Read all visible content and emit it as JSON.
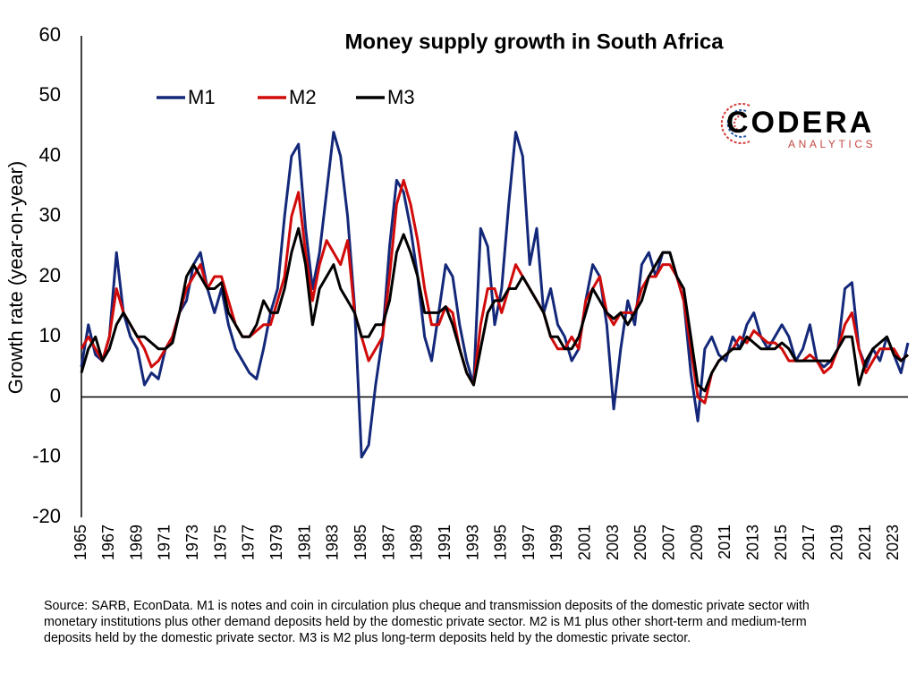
{
  "chart_data": {
    "type": "line",
    "title": "Money supply growth in South Africa",
    "y_label": "Growth rate (year-on-year)",
    "logo": {
      "name": "CODERA",
      "tagline": "ANALYTICS"
    },
    "source_note": [
      "Source: SARB, EconData. M1 is notes and coin in circulation plus cheque and transmission deposits of the domestic private sector with",
      "monetary institutions plus other demand deposits held by the domestic private sector. M2 is M1 plus other short-term and medium-term",
      "deposits held by the domestic private sector. M3 is M2 plus long-term deposits held by the domestic private sector."
    ],
    "xlim": [
      1965,
      2024
    ],
    "xticks": [
      1965,
      1967,
      1969,
      1971,
      1973,
      1975,
      1977,
      1979,
      1981,
      1983,
      1985,
      1987,
      1989,
      1991,
      1993,
      1995,
      1997,
      1999,
      2001,
      2003,
      2005,
      2007,
      2009,
      2011,
      2013,
      2015,
      2017,
      2019,
      2021,
      2023
    ],
    "ylim": [
      -20,
      60
    ],
    "yticks": [
      -20,
      -10,
      0,
      10,
      20,
      30,
      40,
      50,
      60
    ],
    "grid": false,
    "legend": "top-left",
    "x": [
      1965,
      1965.5,
      1966,
      1966.5,
      1967,
      1967.5,
      1968,
      1968.5,
      1969,
      1969.5,
      1970,
      1970.5,
      1971,
      1971.5,
      1972,
      1972.5,
      1973,
      1973.5,
      1974,
      1974.5,
      1975,
      1975.5,
      1976,
      1976.5,
      1977,
      1977.5,
      1978,
      1978.5,
      1979,
      1979.5,
      1980,
      1980.5,
      1981,
      1981.5,
      1982,
      1982.5,
      1983,
      1983.5,
      1984,
      1984.5,
      1985,
      1985.5,
      1986,
      1986.5,
      1987,
      1987.5,
      1988,
      1988.5,
      1989,
      1989.5,
      1990,
      1990.5,
      1991,
      1991.5,
      1992,
      1992.5,
      1993,
      1993.5,
      1994,
      1994.5,
      1995,
      1995.5,
      1996,
      1996.5,
      1997,
      1997.5,
      1998,
      1998.5,
      1999,
      1999.5,
      2000,
      2000.5,
      2001,
      2001.5,
      2002,
      2002.5,
      2003,
      2003.5,
      2004,
      2004.5,
      2005,
      2005.5,
      2006,
      2006.5,
      2007,
      2007.5,
      2008,
      2008.5,
      2009,
      2009.5,
      2010,
      2010.5,
      2011,
      2011.5,
      2012,
      2012.5,
      2013,
      2013.5,
      2014,
      2014.5,
      2015,
      2015.5,
      2016,
      2016.5,
      2017,
      2017.5,
      2018,
      2018.5,
      2019,
      2019.5,
      2020,
      2020.5,
      2021,
      2021.5,
      2022,
      2022.5,
      2023,
      2023.5,
      2024
    ],
    "series": [
      {
        "name": "M1",
        "color": "#14287a",
        "values": [
          5,
          12,
          7,
          6,
          10,
          24,
          14,
          10,
          8,
          2,
          4,
          3,
          8,
          10,
          14,
          16,
          22,
          24,
          18,
          14,
          18,
          12,
          8,
          6,
          4,
          3,
          8,
          14,
          18,
          30,
          40,
          42,
          28,
          18,
          24,
          34,
          44,
          40,
          30,
          15,
          -10,
          -8,
          2,
          10,
          25,
          36,
          34,
          28,
          20,
          10,
          6,
          14,
          22,
          20,
          12,
          6,
          2,
          28,
          25,
          12,
          18,
          32,
          44,
          40,
          22,
          28,
          14,
          18,
          12,
          10,
          6,
          8,
          16,
          22,
          20,
          12,
          -2,
          8,
          16,
          12,
          22,
          24,
          20,
          24,
          24,
          20,
          16,
          4,
          -4,
          8,
          10,
          7,
          6,
          10,
          8,
          12,
          14,
          10,
          8,
          10,
          12,
          10,
          6,
          8,
          12,
          6,
          5,
          6,
          8,
          18,
          19,
          8,
          5,
          8,
          6,
          10,
          7,
          4,
          9
        ]
      },
      {
        "name": "M2",
        "color": "#d10a0a",
        "values": [
          8,
          10,
          8,
          6,
          10,
          18,
          14,
          12,
          10,
          8,
          5,
          6,
          8,
          10,
          14,
          18,
          20,
          22,
          18,
          20,
          20,
          16,
          12,
          10,
          10,
          11,
          12,
          12,
          16,
          20,
          30,
          34,
          24,
          16,
          22,
          26,
          24,
          22,
          26,
          14,
          10,
          6,
          8,
          10,
          20,
          32,
          36,
          32,
          26,
          18,
          12,
          12,
          15,
          14,
          8,
          4,
          2,
          12,
          18,
          18,
          14,
          18,
          22,
          20,
          18,
          16,
          14,
          10,
          8,
          8,
          10,
          8,
          16,
          18,
          20,
          14,
          12,
          14,
          14,
          14,
          18,
          20,
          20,
          22,
          22,
          20,
          16,
          8,
          0,
          -1,
          4,
          6,
          7,
          8,
          10,
          9,
          11,
          10,
          9,
          9,
          8,
          6,
          6,
          6,
          7,
          6,
          4,
          5,
          8,
          12,
          14,
          8,
          4,
          6,
          8,
          8,
          8,
          6,
          7
        ]
      },
      {
        "name": "M3",
        "color": "#000000",
        "values": [
          4,
          8,
          10,
          6,
          8,
          12,
          14,
          12,
          10,
          10,
          9,
          8,
          8,
          9,
          14,
          20,
          22,
          20,
          18,
          18,
          19,
          14,
          12,
          10,
          10,
          12,
          16,
          14,
          14,
          18,
          24,
          28,
          22,
          12,
          18,
          20,
          22,
          18,
          16,
          14,
          10,
          10,
          12,
          12,
          16,
          24,
          27,
          24,
          20,
          14,
          14,
          14,
          15,
          12,
          8,
          4,
          2,
          8,
          14,
          16,
          16,
          18,
          18,
          20,
          18,
          16,
          14,
          10,
          10,
          8,
          8,
          10,
          14,
          18,
          16,
          14,
          13,
          14,
          12,
          14,
          16,
          20,
          22,
          24,
          24,
          20,
          18,
          10,
          2,
          1,
          4,
          6,
          7,
          8,
          8,
          10,
          9,
          8,
          8,
          8,
          9,
          8,
          6,
          6,
          6,
          6,
          6,
          6,
          8,
          10,
          10,
          2,
          6,
          8,
          9,
          10,
          7,
          6,
          7
        ]
      }
    ]
  }
}
